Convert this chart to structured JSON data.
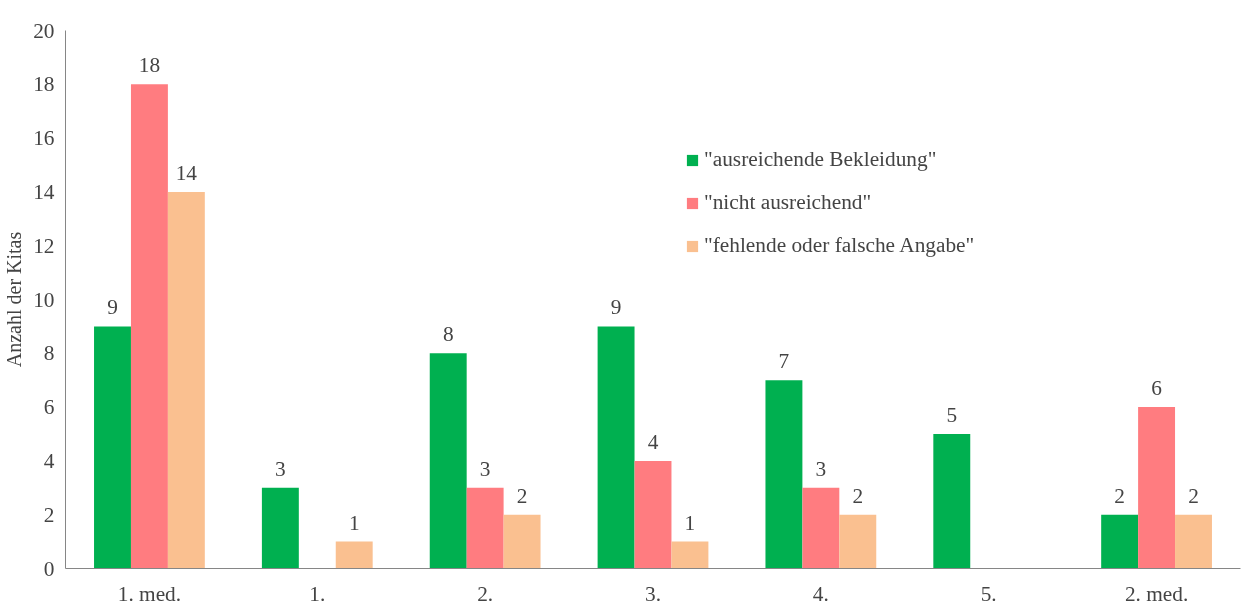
{
  "chart_data": {
    "type": "bar",
    "ylabel": "Anzahl der Kitas",
    "categories": [
      "1. med.",
      "1.",
      "2.",
      "3.",
      "4.",
      "5.",
      "2. med."
    ],
    "series": [
      {
        "name": "\"ausreichende Bekleidung\"",
        "color": "#00b050",
        "values": [
          9,
          3,
          8,
          9,
          7,
          5,
          2
        ]
      },
      {
        "name": "\"nicht ausreichend\"",
        "color": "#ff7c80",
        "values": [
          18,
          null,
          3,
          4,
          3,
          null,
          6
        ]
      },
      {
        "name": "\"fehlende oder falsche Angabe\"",
        "color": "#fac090",
        "values": [
          14,
          1,
          2,
          1,
          2,
          null,
          2
        ]
      }
    ],
    "ylim": [
      0,
      20
    ],
    "yticks": [
      0,
      2,
      4,
      6,
      8,
      10,
      12,
      14,
      16,
      18,
      20
    ],
    "grid": false,
    "legend": "top right",
    "data_labels": true
  }
}
